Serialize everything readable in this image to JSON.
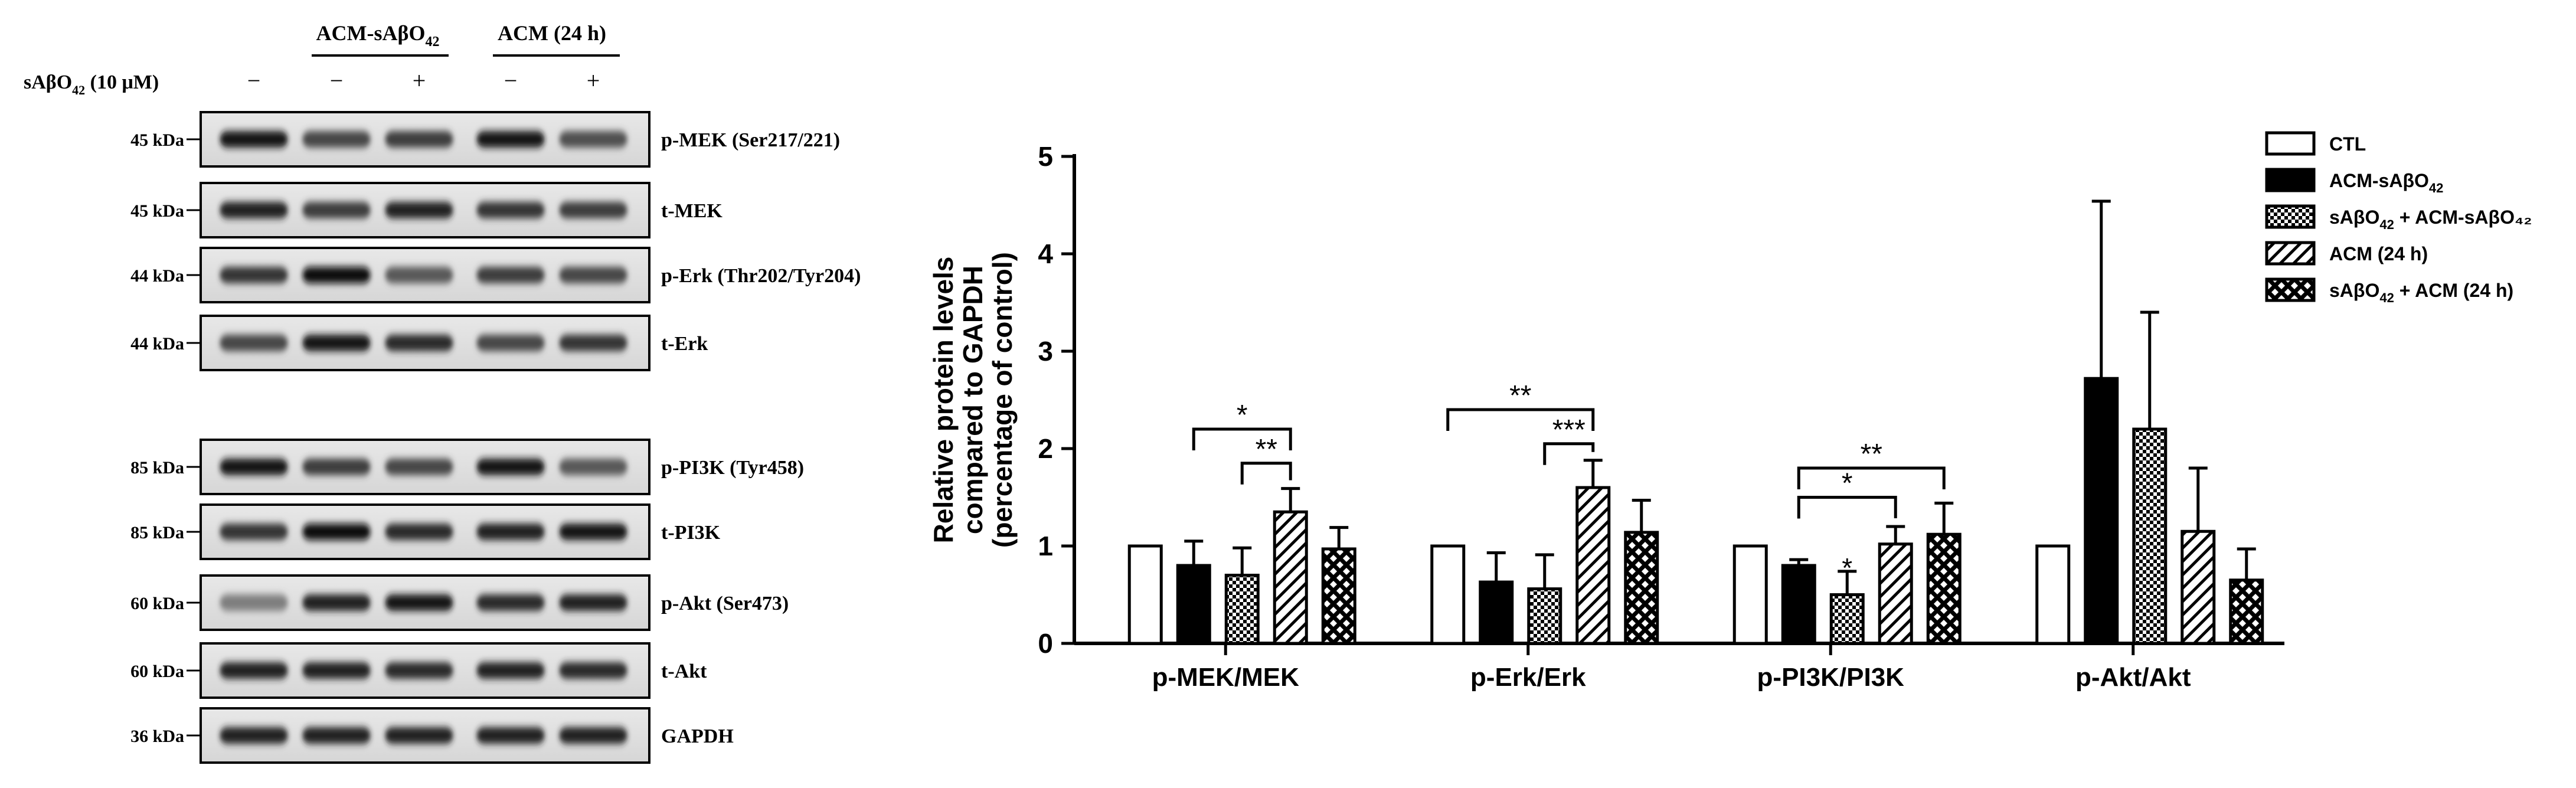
{
  "blot": {
    "treatment_label": "sAβO",
    "treatment_label_sub": "42",
    "treatment_label_tail": " (10 μM)",
    "group1_label": "ACM-sAβO",
    "group1_label_sub": "42",
    "group2_label": "ACM (24 h)",
    "lane_signs": [
      "−",
      "−",
      "+",
      "−",
      "+"
    ],
    "panels": [
      {
        "kda": "45 kDa",
        "label": "p-MEK (Ser217/221)",
        "intensity": [
          0.95,
          0.7,
          0.75,
          0.95,
          0.65
        ]
      },
      {
        "kda": "45 kDa",
        "label": "t-MEK",
        "intensity": [
          0.9,
          0.75,
          0.9,
          0.8,
          0.75
        ]
      },
      {
        "kda": "44 kDa",
        "label": "p-Erk (Thr202/Tyr204)",
        "intensity": [
          0.8,
          1.0,
          0.6,
          0.75,
          0.7
        ]
      },
      {
        "kda": "44 kDa",
        "label": "t-Erk",
        "intensity": [
          0.7,
          0.95,
          0.85,
          0.7,
          0.8
        ]
      },
      {
        "kda": "85 kDa",
        "label": "p-PI3K (Tyr458)",
        "intensity": [
          0.95,
          0.75,
          0.7,
          0.95,
          0.6
        ]
      },
      {
        "kda": "85 kDa",
        "label": "t-PI3K",
        "intensity": [
          0.8,
          1.0,
          0.85,
          0.9,
          0.95
        ]
      },
      {
        "kda": "60 kDa",
        "label": "p-Akt (Ser473)",
        "intensity": [
          0.4,
          0.9,
          0.95,
          0.85,
          0.9
        ]
      },
      {
        "kda": "60 kDa",
        "label": "t-Akt",
        "intensity": [
          0.9,
          0.9,
          0.85,
          0.9,
          0.85
        ]
      },
      {
        "kda": "36 kDa",
        "label": "GAPDH",
        "intensity": [
          0.9,
          0.9,
          0.9,
          0.9,
          0.9
        ]
      }
    ]
  },
  "chart_data": {
    "type": "bar",
    "ylabel_lines": [
      "Relative protein levels",
      "compared to GAPDH",
      "(percentage of control)"
    ],
    "ylim": [
      0,
      5
    ],
    "yticks": [
      0,
      1,
      2,
      3,
      4,
      5
    ],
    "categories": [
      "p-MEK/MEK",
      "p-Erk/Erk",
      "p-PI3K/PI3K",
      "p-Akt/Akt"
    ],
    "series": [
      {
        "name": "CTL",
        "name_sub": "",
        "name_tail": "",
        "pattern": "white",
        "values": [
          1.0,
          1.0,
          1.0,
          1.0
        ],
        "errors": [
          0,
          0,
          0,
          0
        ]
      },
      {
        "name": "ACM-sAβO",
        "name_sub": "42",
        "name_tail": "",
        "pattern": "black",
        "values": [
          0.8,
          0.63,
          0.8,
          2.72
        ],
        "errors": [
          0.25,
          0.3,
          0.06,
          1.82
        ]
      },
      {
        "name": "sAβO",
        "name_sub": "42",
        "name_tail": " + ACM-sAβO₄₂",
        "pattern": "checker",
        "values": [
          0.7,
          0.56,
          0.5,
          2.2
        ],
        "errors": [
          0.28,
          0.35,
          0.24,
          1.2
        ]
      },
      {
        "name": "ACM (24 h)",
        "name_sub": "",
        "name_tail": "",
        "pattern": "hatch",
        "values": [
          1.35,
          1.6,
          1.02,
          1.15
        ],
        "errors": [
          0.24,
          0.28,
          0.18,
          0.65
        ]
      },
      {
        "name": "sAβO",
        "name_sub": "42",
        "name_tail": " + ACM (24 h)",
        "pattern": "cross",
        "values": [
          0.97,
          1.14,
          1.12,
          0.65
        ],
        "errors": [
          0.22,
          0.33,
          0.32,
          0.32
        ]
      }
    ],
    "significance": [
      {
        "category": 0,
        "from": 1,
        "to": 3,
        "y": 2.2,
        "label": "*"
      },
      {
        "category": 0,
        "from": 2,
        "to": 3,
        "y": 1.85,
        "label": "**"
      },
      {
        "category": 1,
        "from": 0,
        "to": 3,
        "y": 2.4,
        "label": "**"
      },
      {
        "category": 1,
        "from": 2,
        "to": 3,
        "y": 2.05,
        "label": "***"
      },
      {
        "category": 2,
        "from": 1,
        "to": 4,
        "y": 1.8,
        "label": "**"
      },
      {
        "category": 2,
        "from": 1,
        "to": 3,
        "y": 1.5,
        "label": "*"
      }
    ],
    "point_stars": [
      {
        "category": 2,
        "series": 2,
        "label": "*"
      }
    ],
    "legend_position": "top-right"
  }
}
